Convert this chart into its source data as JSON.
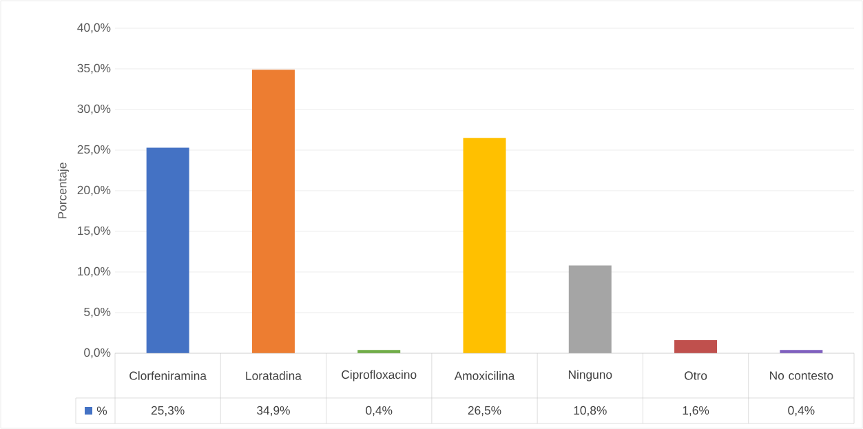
{
  "chart_data": {
    "type": "bar",
    "ylabel": "Porcentaje",
    "categories": [
      "Clorfeniramina",
      "Loratadina",
      "Ciprofloxacino",
      "Amoxicilina",
      "Ninguno",
      "Otro",
      "No contesto"
    ],
    "series": [
      {
        "name": "%",
        "color": "#4472c4",
        "colors": [
          "#4472c4",
          "#ed7d31",
          "#70ad47",
          "#ffc000",
          "#a5a5a5",
          "#c0504d",
          "#7f5fbf"
        ],
        "values": [
          25.3,
          34.9,
          0.4,
          26.5,
          10.8,
          1.6,
          0.4
        ],
        "value_labels": [
          "25,3%",
          "34,9%",
          "0,4%",
          "26,5%",
          "10,8%",
          "1,6%",
          "0,4%"
        ]
      }
    ],
    "ylim": [
      0,
      40
    ],
    "yticks": [
      {
        "value": 0,
        "label": "0,0%"
      },
      {
        "value": 5,
        "label": "5,0%"
      },
      {
        "value": 10,
        "label": "10,0%"
      },
      {
        "value": 15,
        "label": "15,0%"
      },
      {
        "value": 20,
        "label": "20,0%"
      },
      {
        "value": 25,
        "label": "25,0%"
      },
      {
        "value": 30,
        "label": "30,0%"
      },
      {
        "value": 35,
        "label": "35,0%"
      },
      {
        "value": 40,
        "label": "40,0%"
      }
    ],
    "grid": "y",
    "legend": "bottom"
  }
}
